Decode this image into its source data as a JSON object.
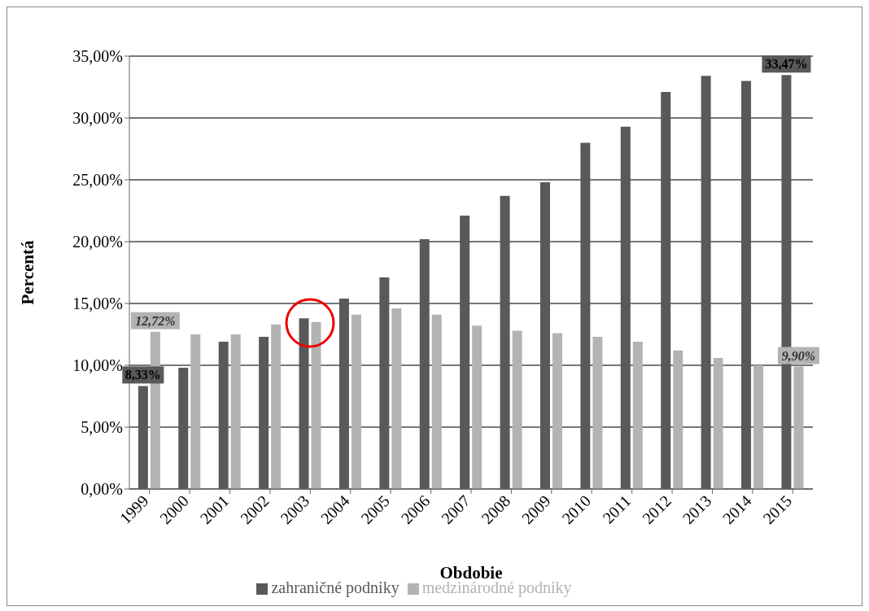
{
  "chart_data": {
    "type": "bar",
    "xlabel": "Obdobie",
    "ylabel": "Percentá",
    "categories": [
      "1999",
      "2000",
      "2001",
      "2002",
      "2003",
      "2004",
      "2005",
      "2006",
      "2007",
      "2008",
      "2009",
      "2010",
      "2011",
      "2012",
      "2013",
      "2014",
      "2015"
    ],
    "series": [
      {
        "name": "zahraničné podniky",
        "color": "#595959",
        "values": [
          8.33,
          9.8,
          11.9,
          12.3,
          13.8,
          15.4,
          17.1,
          20.2,
          22.1,
          23.7,
          24.8,
          28.0,
          29.3,
          32.1,
          33.4,
          33.0,
          33.47
        ],
        "value_labels": [
          "8,33%",
          null,
          null,
          null,
          null,
          null,
          null,
          null,
          null,
          null,
          null,
          null,
          null,
          null,
          null,
          null,
          "33,47%"
        ]
      },
      {
        "name": "medzinárodné podniky",
        "color": "#b3b3b3",
        "values": [
          12.72,
          12.5,
          12.5,
          13.3,
          13.5,
          14.1,
          14.6,
          14.1,
          13.2,
          12.8,
          12.6,
          12.3,
          11.9,
          11.2,
          10.6,
          10.0,
          9.9
        ],
        "value_labels": [
          "12,72%",
          null,
          null,
          null,
          null,
          null,
          null,
          null,
          null,
          null,
          null,
          null,
          null,
          null,
          null,
          null,
          "9,90%"
        ]
      }
    ],
    "ylim": [
      0,
      35
    ],
    "yticks": [
      {
        "value": 0,
        "label": "0,00%"
      },
      {
        "value": 5,
        "label": "5,00%"
      },
      {
        "value": 10,
        "label": "10,00%"
      },
      {
        "value": 15,
        "label": "15,00%"
      },
      {
        "value": 20,
        "label": "20,00%"
      },
      {
        "value": 25,
        "label": "25,00%"
      },
      {
        "value": 30,
        "label": "30,00%"
      },
      {
        "value": 35,
        "label": "35,00%"
      }
    ],
    "grid": "y",
    "legend": "bottom"
  }
}
